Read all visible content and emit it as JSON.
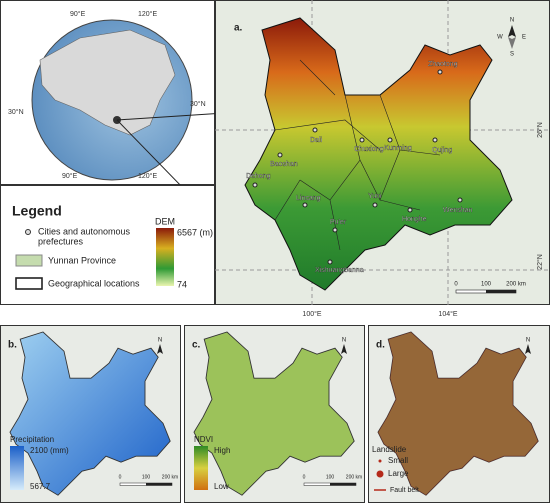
{
  "globe": {
    "top_lon_1": "90°E",
    "top_lon_2": "120°E",
    "left_lat": "30°N",
    "right_lat": "30°N",
    "bottom_lon_1": "90°E",
    "bottom_lon_2": "120°E"
  },
  "legend": {
    "title": "Legend",
    "items": [
      "Cities and autonomous",
      "Yunnan Province",
      "Geographical locations"
    ],
    "items_cont": "prefectures",
    "dem_title": "DEM",
    "dem_max": "6567 (m)",
    "dem_min": "74"
  },
  "map": {
    "label": "a.",
    "cities": [
      "Zhaotong",
      "Kunming",
      "Qujing",
      "Chuxiong",
      "Dali",
      "Baoshan",
      "Dehong",
      "Lincang",
      "Pu'er",
      "Yuxi",
      "Honghe",
      "Wenshan",
      "Xishuangbanna"
    ],
    "compass": [
      "N",
      "W",
      "E",
      "S"
    ],
    "scale": [
      "0",
      "100",
      "200 km"
    ],
    "lat_labels": [
      "26°N",
      "22°N"
    ],
    "lon_labels": [
      "100°E",
      "104°E"
    ]
  },
  "panels": [
    {
      "label": "b.",
      "legend_title": "Precipitation",
      "max": "2100 (mm)",
      "min": "567.7",
      "scale": [
        "0",
        "100",
        "200 km"
      ]
    },
    {
      "label": "c.",
      "legend_title": "NDVI",
      "max": "High",
      "min": "Low",
      "scale": [
        "0",
        "100",
        "200 km"
      ]
    },
    {
      "label": "d.",
      "legend_title": "Landslide",
      "items": [
        "Small",
        "Large",
        "Fault belt"
      ]
    }
  ]
}
